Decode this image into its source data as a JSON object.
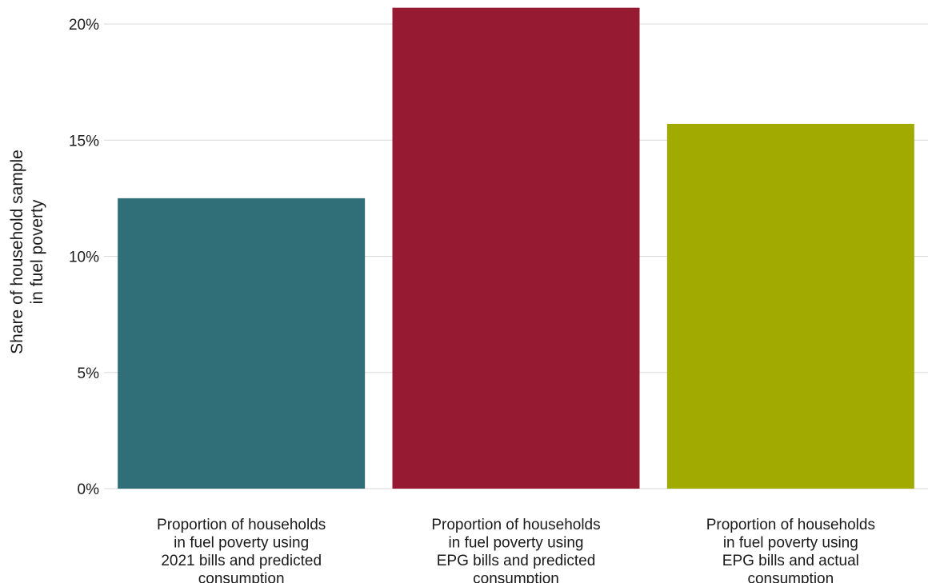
{
  "chart_data": {
    "type": "bar",
    "title": "",
    "xlabel": "",
    "ylabel_lines": [
      "Share of household sample",
      "in fuel poverty"
    ],
    "categories": [
      [
        "Proportion of households",
        "in fuel poverty using",
        "2021 bills and predicted",
        "consumption"
      ],
      [
        "Proportion of households",
        "in fuel poverty using",
        "EPG bills and predicted",
        "consumption"
      ],
      [
        "Proportion of households",
        "in fuel poverty using",
        "EPG bills and actual",
        "consumption"
      ]
    ],
    "values": [
      12.5,
      20.7,
      15.7
    ],
    "colors": [
      "#306e78",
      "#961b32",
      "#a0aa00"
    ],
    "ylim": [
      0,
      21
    ],
    "yticks": [
      0,
      5,
      10,
      15,
      20
    ],
    "ytick_labels": [
      "0%",
      "5%",
      "10%",
      "15%",
      "20%"
    ],
    "grid": true,
    "legend": "none"
  }
}
